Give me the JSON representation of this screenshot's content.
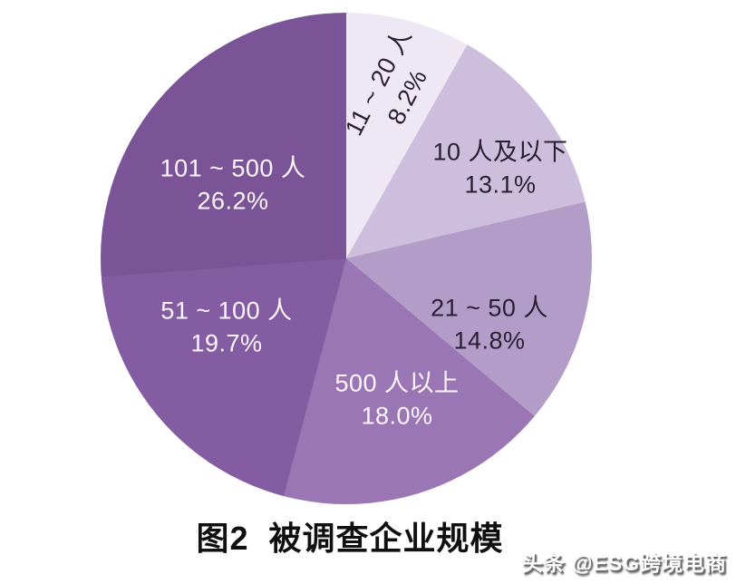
{
  "chart_data": {
    "type": "pie",
    "title": "图2  被调查企业规模",
    "legend_position": "none",
    "start_angle_deg": 0,
    "direction": "clockwise",
    "slices": [
      {
        "label": "11 ~ 20 人",
        "value": 8.2,
        "value_label": "8.2%",
        "color": "#eee8f4",
        "text_color": "#281f33"
      },
      {
        "label": "10 人及以下",
        "value": 13.1,
        "value_label": "13.1%",
        "color": "#cebedd",
        "text_color": "#281f33"
      },
      {
        "label": "21 ~ 50 人",
        "value": 14.8,
        "value_label": "14.8%",
        "color": "#b29cc8",
        "text_color": "#281f33"
      },
      {
        "label": "500 人以上",
        "value": 18.0,
        "value_label": "18.0%",
        "color": "#9b76b4",
        "text_color": "#fdf6fc"
      },
      {
        "label": "51 ~ 100 人",
        "value": 19.7,
        "value_label": "19.7%",
        "color": "#835ca1",
        "text_color": "#fdf6fc"
      },
      {
        "label": "101 ~ 500 人",
        "value": 26.2,
        "value_label": "26.2%",
        "color": "#7b5498",
        "text_color": "#fdf6fc"
      }
    ]
  },
  "watermark": {
    "text": "头条 @ESG跨境电商",
    "color": "#ffffff",
    "shadow_color": "#6a6a6a"
  }
}
